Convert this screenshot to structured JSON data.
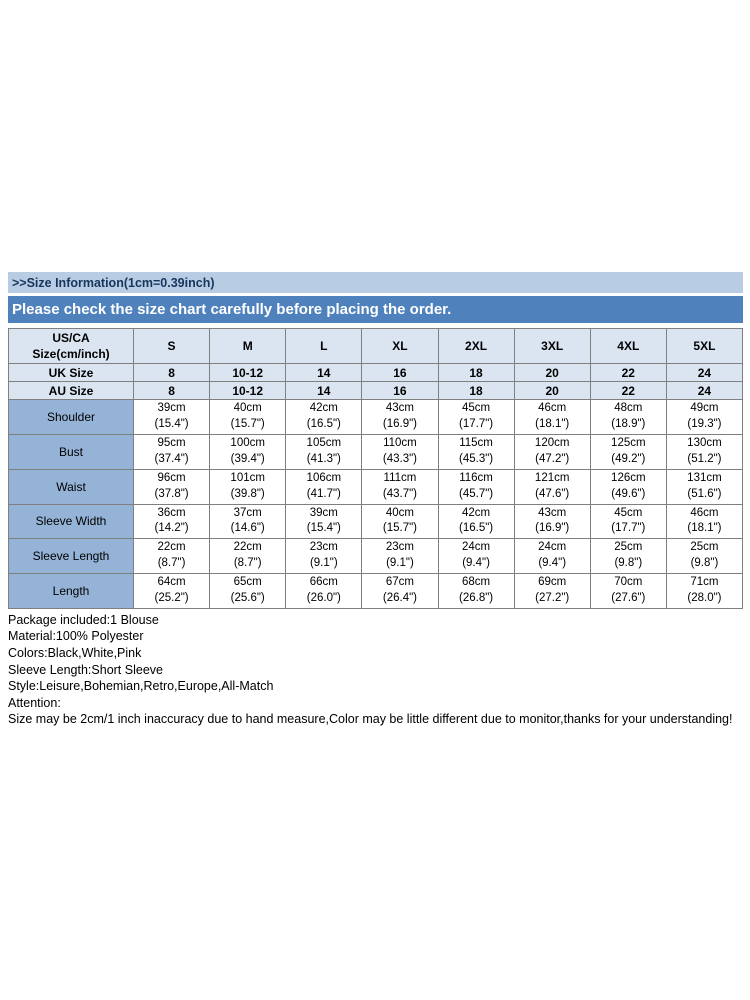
{
  "page": {
    "info_bar": ">>Size Information(1cm=0.39inch)",
    "notice_bar": "Please check the size chart carefully before placing the order."
  },
  "colors": {
    "info_bar_bg": "#b8cce4",
    "info_bar_text": "#17365d",
    "notice_bar_bg": "#4f81bd",
    "header_bg": "#dbe5f1",
    "label_col_bg": "#95b3d7",
    "border": "#7f7f7f"
  },
  "size_chart": {
    "corner_header": [
      "US/CA",
      "Size(cm/inch)"
    ],
    "size_headers": [
      "S",
      "M",
      "L",
      "XL",
      "2XL",
      "3XL",
      "4XL",
      "5XL"
    ],
    "size_rows": [
      {
        "label": "UK Size",
        "values": [
          "8",
          "10-12",
          "14",
          "16",
          "18",
          "20",
          "22",
          "24"
        ]
      },
      {
        "label": "AU Size",
        "values": [
          "8",
          "10-12",
          "14",
          "16",
          "18",
          "20",
          "22",
          "24"
        ]
      }
    ],
    "measurement_rows": [
      {
        "label": "Shoulder",
        "cm": [
          "39cm",
          "40cm",
          "42cm",
          "43cm",
          "45cm",
          "46cm",
          "48cm",
          "49cm"
        ],
        "inch": [
          "(15.4\")",
          "(15.7\")",
          "(16.5\")",
          "(16.9\")",
          "(17.7\")",
          "(18.1\")",
          "(18.9\")",
          "(19.3\")"
        ]
      },
      {
        "label": "Bust",
        "cm": [
          "95cm",
          "100cm",
          "105cm",
          "110cm",
          "115cm",
          "120cm",
          "125cm",
          "130cm"
        ],
        "inch": [
          "(37.4\")",
          "(39.4\")",
          "(41.3\")",
          "(43.3\")",
          "(45.3\")",
          "(47.2\")",
          "(49.2\")",
          "(51.2\")"
        ]
      },
      {
        "label": "Waist",
        "cm": [
          "96cm",
          "101cm",
          "106cm",
          "111cm",
          "116cm",
          "121cm",
          "126cm",
          "131cm"
        ],
        "inch": [
          "(37.8\")",
          "(39.8\")",
          "(41.7\")",
          "(43.7\")",
          "(45.7\")",
          "(47.6\")",
          "(49.6\")",
          "(51.6\")"
        ]
      },
      {
        "label": "Sleeve Width",
        "cm": [
          "36cm",
          "37cm",
          "39cm",
          "40cm",
          "42cm",
          "43cm",
          "45cm",
          "46cm"
        ],
        "inch": [
          "(14.2\")",
          "(14.6\")",
          "(15.4\")",
          "(15.7\")",
          "(16.5\")",
          "(16.9\")",
          "(17.7\")",
          "(18.1\")"
        ]
      },
      {
        "label": "Sleeve Length",
        "cm": [
          "22cm",
          "22cm",
          "23cm",
          "23cm",
          "24cm",
          "24cm",
          "25cm",
          "25cm"
        ],
        "inch": [
          "(8.7\")",
          "(8.7\")",
          "(9.1\")",
          "(9.1\")",
          "(9.4\")",
          "(9.4\")",
          "(9.8\")",
          "(9.8\")"
        ]
      },
      {
        "label": "Length",
        "cm": [
          "64cm",
          "65cm",
          "66cm",
          "67cm",
          "68cm",
          "69cm",
          "70cm",
          "71cm"
        ],
        "inch": [
          "(25.2\")",
          "(25.6\")",
          "(26.0\")",
          "(26.4\")",
          "(26.8\")",
          "(27.2\")",
          "(27.6\")",
          "(28.0\")"
        ]
      }
    ]
  },
  "details": [
    "Package included:1 Blouse",
    "Material:100% Polyester",
    "Colors:Black,White,Pink",
    "Sleeve Length:Short Sleeve",
    "Style:Leisure,Bohemian,Retro,Europe,All-Match",
    "Attention:",
    "Size may be 2cm/1 inch inaccuracy due to hand measure,Color may be little different due to monitor,thanks for your understanding!"
  ]
}
